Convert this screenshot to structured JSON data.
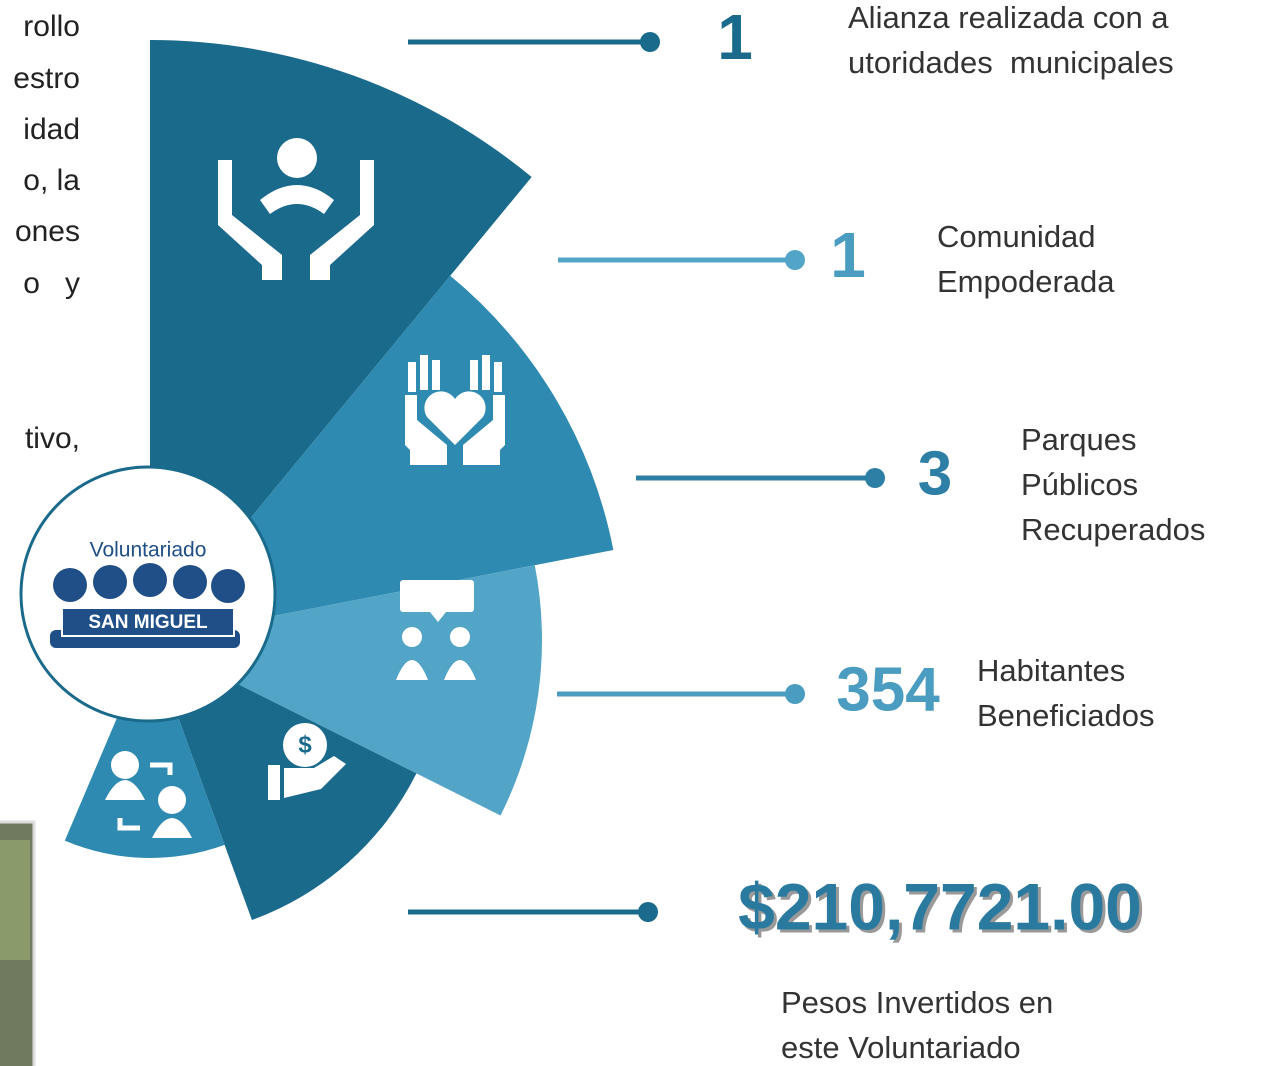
{
  "intro_fragments": [
    "rollo",
    "estro",
    "idad",
    "o, la",
    "ones",
    "o   y",
    "tivo,"
  ],
  "logo": {
    "title": "Voluntariado",
    "name": "SAN MIGUEL"
  },
  "stats": [
    {
      "value": "1",
      "label_lines": [
        "Alianza realizada con a",
        "utoridades  municipales"
      ]
    },
    {
      "value": "1",
      "label_lines": [
        "Comunidad",
        "Empoderada"
      ]
    },
    {
      "value": "3",
      "label_lines": [
        "Parques",
        "Públicos",
        "Recuperados"
      ]
    },
    {
      "value": "354",
      "label_lines": [
        "Habitantes",
        "Beneficiados"
      ]
    },
    {
      "value": "$210,7721.00",
      "label_lines": [
        "Pesos Invertidos en",
        "este Voluntariado"
      ]
    }
  ]
}
